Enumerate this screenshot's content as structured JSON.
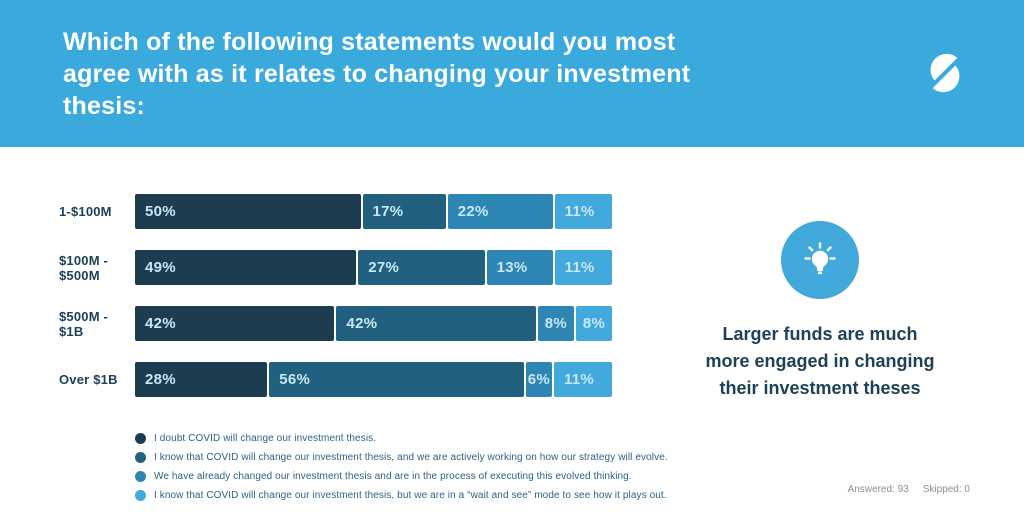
{
  "header": {
    "title": "Which of the following statements would you most\nagree with as it relates to changing your investment\nthesis:",
    "logo": "s-brand-logo"
  },
  "colors": {
    "header_bg": "#3AAADC",
    "accent_blue": "#41A9DC",
    "label_navy": "#1E4159",
    "value_text": "#C9E8F7",
    "legend_text": "#2D6384",
    "callout_text": "#1F4055",
    "footer_gray": "#8E8E8E"
  },
  "chart_data": {
    "type": "bar",
    "orientation": "horizontal",
    "stacked": true,
    "unit": "%",
    "xlim": [
      0,
      100
    ],
    "value_labels": "inside",
    "legend_position": "bottom",
    "categories": [
      "1-$100M",
      "$100M -\n$500M",
      "$500M -\n$1B",
      "Over $1B"
    ],
    "series": [
      {
        "name": "I doubt COVID will change our investment thesis.",
        "color": "#1C3C50",
        "values": [
          50,
          49,
          42,
          28
        ]
      },
      {
        "name": "I know that COVID will change our investment thesis, and we are actively working on how our strategy will evolve.",
        "color": "#21617F",
        "values": [
          17,
          27,
          42,
          56
        ]
      },
      {
        "name": "We have already changed our investment thesis and are in the process of executing this evolved thinking.",
        "color": "#2D86B3",
        "values": [
          22,
          13,
          8,
          6
        ]
      },
      {
        "name": "I know that COVID will change our investment thesis, but we are in a “wait and see” mode to see how it plays out.",
        "color": "#41A9DC",
        "values": [
          11,
          11,
          8,
          11
        ]
      }
    ]
  },
  "callout": {
    "text": "Larger funds are much more engaged in changing their investment theses"
  },
  "footer": {
    "answered": "Answered: 93",
    "skipped": "Skipped: 0"
  }
}
